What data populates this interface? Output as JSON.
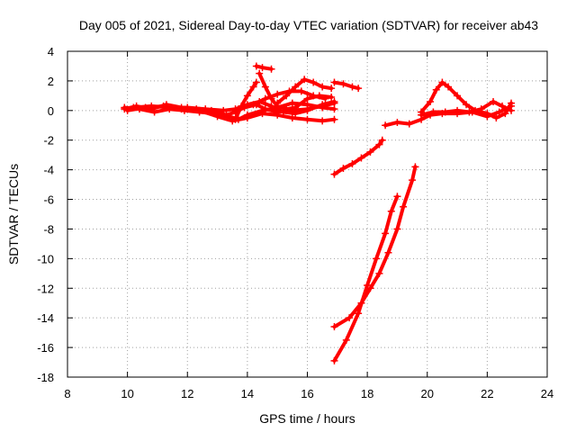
{
  "chart_data": {
    "type": "scatter",
    "title": "Day 005 of 2021, Sidereal Day-to-day VTEC variation (SDTVAR) for receiver ab43",
    "xlabel": "GPS time / hours",
    "ylabel": "SDTVAR / TECUs",
    "xlim": [
      8,
      24
    ],
    "ylim": [
      -18,
      4
    ],
    "xticks": [
      8,
      10,
      12,
      14,
      16,
      18,
      20,
      22,
      24
    ],
    "yticks": [
      -18,
      -16,
      -14,
      -12,
      -10,
      -8,
      -6,
      -4,
      -2,
      0,
      2,
      4
    ],
    "grid": true,
    "marker_color": "#ff0000",
    "series": [
      {
        "points": [
          [
            9.9,
            0.1
          ],
          [
            10.3,
            0.3
          ],
          [
            10.8,
            0.1
          ],
          [
            11.3,
            0.4
          ],
          [
            11.8,
            0.2
          ],
          [
            12.3,
            0.1
          ],
          [
            12.8,
            0.0
          ],
          [
            13.3,
            -0.3
          ],
          [
            13.6,
            -0.1
          ],
          [
            13.9,
            0.2
          ],
          [
            14.3,
            0.4
          ],
          [
            14.6,
            0.1
          ],
          [
            15.0,
            -0.1
          ],
          [
            15.5,
            0.0
          ],
          [
            16.0,
            0.1
          ],
          [
            16.5,
            0.3
          ],
          [
            16.9,
            0.5
          ]
        ]
      },
      {
        "points": [
          [
            9.9,
            0.2
          ],
          [
            10.4,
            0.1
          ],
          [
            10.9,
            -0.1
          ],
          [
            11.4,
            0.1
          ],
          [
            11.9,
            0.0
          ],
          [
            12.4,
            -0.1
          ],
          [
            12.9,
            -0.2
          ],
          [
            13.4,
            -0.4
          ],
          [
            13.7,
            -0.6
          ],
          [
            14.0,
            -0.3
          ],
          [
            14.5,
            0.0
          ],
          [
            15.0,
            0.2
          ],
          [
            15.5,
            0.5
          ],
          [
            16.0,
            0.4
          ],
          [
            16.5,
            0.2
          ],
          [
            16.9,
            0.1
          ]
        ]
      },
      {
        "points": [
          [
            10.0,
            0.0
          ],
          [
            10.6,
            0.2
          ],
          [
            11.2,
            0.3
          ],
          [
            11.8,
            0.1
          ],
          [
            12.4,
            0.0
          ],
          [
            13.0,
            -0.4
          ],
          [
            13.5,
            -0.7
          ],
          [
            14.0,
            -0.5
          ],
          [
            14.5,
            -0.2
          ],
          [
            15.0,
            -0.3
          ],
          [
            15.5,
            -0.5
          ],
          [
            16.0,
            -0.6
          ],
          [
            16.5,
            -0.7
          ],
          [
            16.9,
            -0.6
          ]
        ]
      },
      {
        "points": [
          [
            10.2,
            0.2
          ],
          [
            10.8,
            0.3
          ],
          [
            11.4,
            0.2
          ],
          [
            12.0,
            0.2
          ],
          [
            12.6,
            0.1
          ],
          [
            13.2,
            0.0
          ],
          [
            13.6,
            0.1
          ],
          [
            14.0,
            0.4
          ],
          [
            14.4,
            0.6
          ],
          [
            14.8,
            0.3
          ],
          [
            15.2,
            -0.1
          ],
          [
            15.6,
            -0.2
          ],
          [
            16.0,
            0.0
          ],
          [
            16.5,
            0.4
          ],
          [
            16.9,
            0.6
          ]
        ]
      },
      {
        "points": [
          [
            13.6,
            -0.6
          ],
          [
            13.8,
            0.3
          ],
          [
            14.0,
            1.0
          ],
          [
            14.2,
            1.6
          ],
          [
            14.3,
            1.9
          ]
        ]
      },
      {
        "points": [
          [
            14.3,
            3.0
          ],
          [
            14.5,
            2.9
          ],
          [
            14.8,
            2.8
          ]
        ]
      },
      {
        "points": [
          [
            14.4,
            2.5
          ],
          [
            14.6,
            1.6
          ],
          [
            14.8,
            0.8
          ],
          [
            15.0,
            0.3
          ],
          [
            15.3,
            0.1
          ],
          [
            15.6,
            0.2
          ],
          [
            16.0,
            0.8
          ],
          [
            16.4,
            1.0
          ],
          [
            16.8,
            0.9
          ]
        ]
      },
      {
        "points": [
          [
            15.0,
            0.5
          ],
          [
            15.3,
            1.0
          ],
          [
            15.6,
            1.6
          ],
          [
            15.9,
            2.1
          ],
          [
            16.2,
            1.9
          ],
          [
            16.5,
            1.6
          ],
          [
            16.8,
            1.5
          ]
        ]
      },
      {
        "points": [
          [
            14.2,
            0.4
          ],
          [
            14.6,
            0.8
          ],
          [
            15.0,
            1.1
          ],
          [
            15.4,
            1.3
          ],
          [
            15.8,
            1.3
          ],
          [
            16.2,
            1.0
          ],
          [
            16.6,
            0.8
          ]
        ]
      },
      {
        "points": [
          [
            16.9,
            1.9
          ],
          [
            17.2,
            1.8
          ],
          [
            17.5,
            1.6
          ],
          [
            17.7,
            1.5
          ]
        ]
      },
      {
        "points": [
          [
            16.9,
            -4.3
          ],
          [
            17.2,
            -3.9
          ],
          [
            17.5,
            -3.6
          ],
          [
            17.8,
            -3.2
          ],
          [
            18.1,
            -2.8
          ],
          [
            18.4,
            -2.3
          ],
          [
            18.5,
            -2.0
          ]
        ]
      },
      {
        "points": [
          [
            16.9,
            -14.6
          ],
          [
            17.4,
            -14.0
          ],
          [
            17.8,
            -13.0
          ],
          [
            18.1,
            -12.0
          ],
          [
            18.4,
            -11.0
          ],
          [
            18.7,
            -9.6
          ],
          [
            19.0,
            -8.0
          ],
          [
            19.2,
            -6.5
          ],
          [
            19.5,
            -4.7
          ],
          [
            19.6,
            -3.8
          ]
        ]
      },
      {
        "points": [
          [
            16.9,
            -16.9
          ],
          [
            17.3,
            -15.5
          ],
          [
            17.7,
            -13.7
          ],
          [
            18.0,
            -11.8
          ],
          [
            18.3,
            -10.0
          ],
          [
            18.6,
            -8.3
          ],
          [
            18.8,
            -6.8
          ],
          [
            19.0,
            -5.8
          ]
        ]
      },
      {
        "points": [
          [
            18.6,
            -1.0
          ],
          [
            19.0,
            -0.8
          ],
          [
            19.4,
            -0.9
          ],
          [
            19.8,
            -0.6
          ],
          [
            20.1,
            -0.3
          ],
          [
            20.5,
            -0.2
          ],
          [
            21.0,
            -0.2
          ],
          [
            21.5,
            -0.1
          ],
          [
            22.0,
            -0.4
          ],
          [
            22.4,
            -0.1
          ],
          [
            22.8,
            0.3
          ]
        ]
      },
      {
        "points": [
          [
            19.8,
            -0.1
          ],
          [
            20.1,
            0.6
          ],
          [
            20.3,
            1.4
          ],
          [
            20.5,
            1.9
          ],
          [
            20.7,
            1.6
          ],
          [
            21.0,
            1.0
          ],
          [
            21.3,
            0.4
          ],
          [
            21.6,
            0.0
          ],
          [
            22.0,
            -0.2
          ],
          [
            22.3,
            -0.5
          ],
          [
            22.6,
            -0.2
          ],
          [
            22.8,
            0.5
          ]
        ]
      },
      {
        "points": [
          [
            19.8,
            -0.3
          ],
          [
            20.2,
            -0.1
          ],
          [
            20.6,
            -0.1
          ],
          [
            21.0,
            0.0
          ],
          [
            21.4,
            -0.1
          ],
          [
            21.8,
            0.1
          ],
          [
            22.2,
            0.6
          ],
          [
            22.5,
            0.3
          ],
          [
            22.8,
            0.0
          ]
        ]
      }
    ]
  }
}
